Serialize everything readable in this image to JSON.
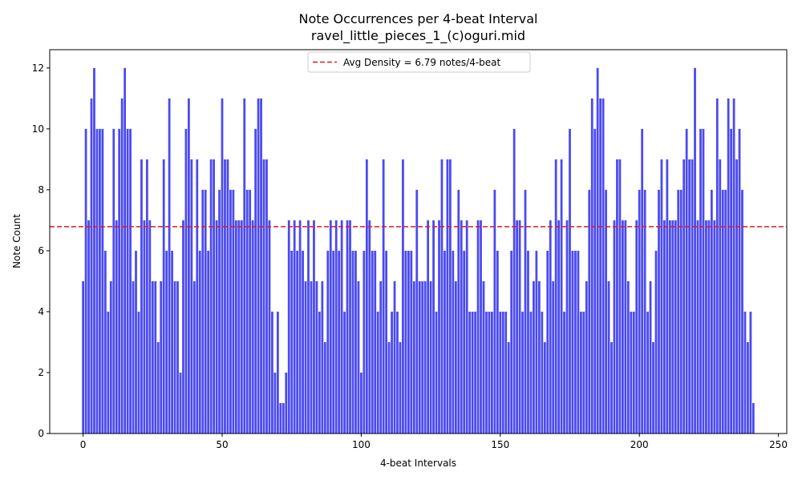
{
  "chart_data": {
    "type": "bar",
    "title_line1": "Note Occurrences per 4-beat Interval",
    "title_line2": "ravel_little_pieces_1_(c)oguri.mid",
    "xlabel": "4-beat Intervals",
    "ylabel": "Note Count",
    "xlim": [
      -12,
      253
    ],
    "ylim": [
      0,
      12.6
    ],
    "xticks": [
      0,
      50,
      100,
      150,
      200,
      250
    ],
    "yticks": [
      0,
      2,
      4,
      6,
      8,
      10,
      12
    ],
    "grid": false,
    "bar_color": "#4a4af0",
    "legend": {
      "placement": "top-center",
      "entry": "Avg Density = 6.79 notes/4-beat",
      "line_color": "#e41a1c"
    },
    "average": 6.79,
    "values": [
      5,
      10,
      7,
      11,
      12,
      10,
      10,
      10,
      6,
      4,
      5,
      10,
      7,
      10,
      11,
      12,
      10,
      10,
      5,
      6,
      4,
      9,
      7,
      9,
      7,
      5,
      5,
      3,
      5,
      9,
      6,
      11,
      6,
      5,
      5,
      2,
      7,
      10,
      11,
      9,
      5,
      9,
      6,
      8,
      8,
      6,
      9,
      9,
      7,
      8,
      11,
      9,
      9,
      8,
      8,
      7,
      7,
      7,
      11,
      8,
      8,
      7,
      10,
      11,
      11,
      9,
      9,
      7,
      4,
      2,
      4,
      1,
      1,
      2,
      7,
      6,
      7,
      6,
      7,
      6,
      5,
      7,
      5,
      7,
      5,
      4,
      5,
      3,
      6,
      7,
      6,
      7,
      6,
      7,
      4,
      7,
      7,
      6,
      6,
      5,
      2,
      6,
      9,
      7,
      6,
      6,
      4,
      5,
      9,
      6,
      3,
      4,
      5,
      4,
      3,
      9,
      6,
      6,
      6,
      5,
      8,
      5,
      5,
      5,
      7,
      5,
      7,
      4,
      7,
      9,
      6,
      9,
      9,
      6,
      5,
      8,
      7,
      6,
      7,
      4,
      4,
      4,
      7,
      7,
      5,
      4,
      4,
      4,
      8,
      6,
      4,
      4,
      4,
      3,
      6,
      10,
      7,
      7,
      4,
      8,
      6,
      4,
      5,
      6,
      5,
      4,
      3,
      6,
      7,
      5,
      9,
      7,
      9,
      4,
      7,
      10,
      6,
      6,
      6,
      4,
      4,
      5,
      8,
      11,
      10,
      12,
      11,
      11,
      8,
      5,
      3,
      7,
      9,
      9,
      7,
      7,
      5,
      4,
      4,
      7,
      8,
      10,
      8,
      4,
      5,
      3,
      6,
      8,
      9,
      7,
      9,
      7,
      7,
      7,
      8,
      8,
      9,
      10,
      9,
      9,
      12,
      7,
      10,
      10,
      7,
      7,
      8,
      7,
      11,
      9,
      8,
      8,
      11,
      10,
      11,
      9,
      10,
      8,
      4,
      3,
      4,
      1
    ]
  }
}
